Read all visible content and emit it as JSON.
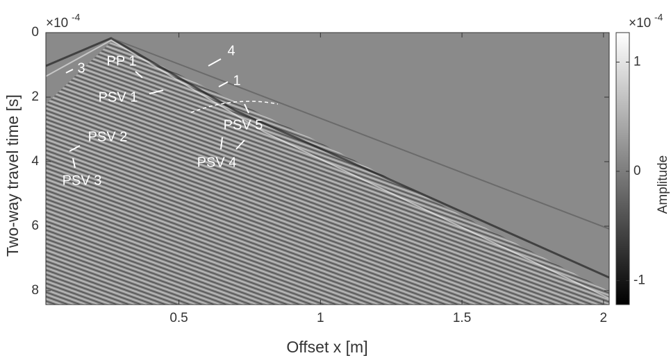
{
  "chart_data": {
    "type": "image",
    "xlabel": "Offset x [m]",
    "ylabel": "Two-way travel time [s]",
    "xlim": [
      0.03,
      2.02
    ],
    "xticks": [
      0.5,
      1,
      1.5,
      2
    ],
    "ylim": [
      0,
      8.43
    ],
    "y_reversed": true,
    "yticks": [
      0,
      2,
      4,
      6,
      8
    ],
    "y_exponent_base": "×10",
    "y_exponent": "-4",
    "colorbar": {
      "label": "Amplitude",
      "clim": [
        -1.22,
        1.27
      ],
      "ticks": [
        -1,
        0,
        1
      ],
      "exponent_base": "×10",
      "exponent": "-4"
    },
    "annotations": [
      "3",
      "PP 1",
      "4",
      "1",
      "PSV 1",
      "PSV 5",
      "PSV 2",
      "PSV 4",
      "PSV 3"
    ]
  }
}
